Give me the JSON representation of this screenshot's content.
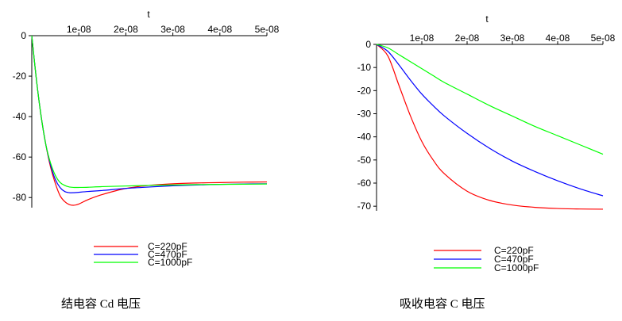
{
  "chart_data": [
    {
      "type": "line",
      "title": "",
      "xlabel": "t",
      "ylabel": "",
      "caption": "结电容 Cd 电压",
      "xlim": [
        0,
        5e-08
      ],
      "ylim": [
        -85,
        0
      ],
      "xticks": [
        "1e-08",
        "2e-08",
        "3e-08",
        "4e-08",
        "5e-08"
      ],
      "yticks": [
        "0",
        "-20",
        "-40",
        "-60",
        "-80"
      ],
      "grid": false,
      "legend_position": "bottom-center",
      "series": [
        {
          "name": "C=220pF",
          "color": "#ff0000",
          "x": [
            0,
            1e-09,
            2e-09,
            3e-09,
            4e-09,
            5e-09,
            6e-09,
            7e-09,
            8e-09,
            9e-09,
            1e-08,
            1.2e-08,
            1.5e-08,
            2e-08,
            2.5e-08,
            3e-08,
            3.5e-08,
            4e-08,
            4.5e-08,
            5e-08
          ],
          "y": [
            0,
            -22,
            -40,
            -54,
            -65,
            -73,
            -79,
            -82,
            -83.5,
            -83.8,
            -83.2,
            -81,
            -78.5,
            -75.5,
            -74,
            -73.2,
            -72.8,
            -72.6,
            -72.4,
            -72.3
          ]
        },
        {
          "name": "C=470pF",
          "color": "#0000ff",
          "x": [
            0,
            1e-09,
            2e-09,
            3e-09,
            4e-09,
            5e-09,
            6e-09,
            7e-09,
            8e-09,
            9e-09,
            1e-08,
            1.2e-08,
            1.5e-08,
            2e-08,
            2.5e-08,
            3e-08,
            3.5e-08,
            4e-08,
            4.5e-08,
            5e-08
          ],
          "y": [
            0,
            -22,
            -40,
            -54,
            -64,
            -71,
            -75,
            -77,
            -77.6,
            -77.6,
            -77.4,
            -77,
            -76.5,
            -75.5,
            -74.8,
            -74.2,
            -73.8,
            -73.5,
            -73.3,
            -73.2
          ]
        },
        {
          "name": "C=1000pF",
          "color": "#00ff00",
          "x": [
            0,
            1e-09,
            2e-09,
            3e-09,
            4e-09,
            5e-09,
            6e-09,
            7e-09,
            8e-09,
            9e-09,
            1e-08,
            1.2e-08,
            1.5e-08,
            2e-08,
            2.5e-08,
            3e-08,
            3.5e-08,
            4e-08,
            4.5e-08,
            5e-08
          ],
          "y": [
            0,
            -22,
            -40,
            -54,
            -63,
            -69,
            -72.5,
            -74,
            -74.8,
            -75,
            -75,
            -74.9,
            -74.6,
            -74.3,
            -74,
            -73.8,
            -73.6,
            -73.5,
            -73.4,
            -73.3
          ]
        }
      ]
    },
    {
      "type": "line",
      "title": "",
      "xlabel": "t",
      "ylabel": "",
      "caption": "吸收电容 C 电压",
      "xlim": [
        0,
        5e-08
      ],
      "ylim": [
        -72,
        0
      ],
      "xticks": [
        "1e-08",
        "2e-08",
        "3e-08",
        "4e-08",
        "5e-08"
      ],
      "yticks": [
        "0",
        "-10",
        "-20",
        "-30",
        "-40",
        "-50",
        "-60",
        "-70"
      ],
      "grid": false,
      "legend_position": "bottom-center",
      "series": [
        {
          "name": "C=220pF",
          "color": "#ff0000",
          "x": [
            0,
            2.5e-09,
            5e-09,
            7.5e-09,
            1e-08,
            1.25e-08,
            1.5e-08,
            2e-08,
            2.5e-08,
            3e-08,
            3.5e-08,
            4e-08,
            4.5e-08,
            5e-08
          ],
          "y": [
            0,
            -5,
            -18,
            -31,
            -42,
            -50,
            -56,
            -63.5,
            -67.5,
            -69.5,
            -70.5,
            -71,
            -71.2,
            -71.3
          ]
        },
        {
          "name": "C=470pF",
          "color": "#0000ff",
          "x": [
            0,
            2.5e-09,
            5e-09,
            7.5e-09,
            1e-08,
            1.25e-08,
            1.5e-08,
            2e-08,
            2.5e-08,
            3e-08,
            3.5e-08,
            4e-08,
            4.5e-08,
            5e-08
          ],
          "y": [
            0,
            -3,
            -9,
            -15.5,
            -21.5,
            -26.5,
            -31,
            -38.5,
            -45,
            -50.5,
            -55,
            -59,
            -62.5,
            -65.5
          ]
        },
        {
          "name": "C=1000pF",
          "color": "#00ff00",
          "x": [
            0,
            2.5e-09,
            5e-09,
            7.5e-09,
            1e-08,
            1.25e-08,
            1.5e-08,
            2e-08,
            2.5e-08,
            3e-08,
            3.5e-08,
            4e-08,
            4.5e-08,
            5e-08
          ],
          "y": [
            0,
            -1.5,
            -4.5,
            -7.5,
            -10.5,
            -13.5,
            -16.5,
            -21.5,
            -26.5,
            -31,
            -35.5,
            -39.5,
            -43.5,
            -47.5
          ]
        }
      ]
    }
  ]
}
